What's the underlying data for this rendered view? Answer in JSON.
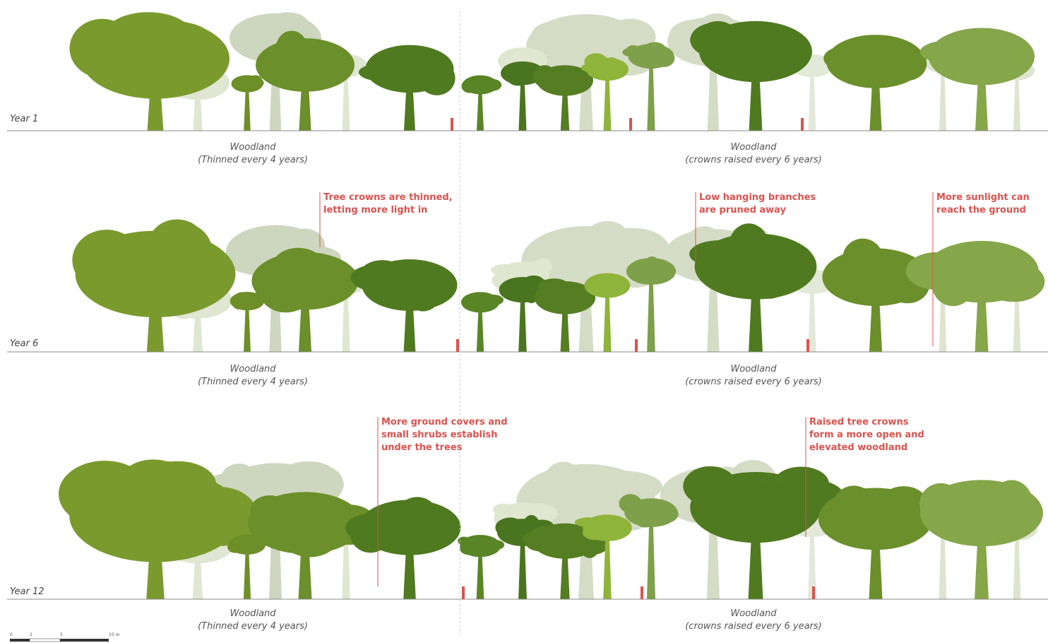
{
  "rows": [
    {
      "year": "Year 1",
      "left_label": {
        "title": "Woodland",
        "subtitle": "(Thinned every 4 years)"
      },
      "right_label": {
        "title": "Woodland",
        "subtitle": "(crowns raised every 6 years)"
      },
      "annotations": []
    },
    {
      "year": "Year 6",
      "left_label": {
        "title": "Woodland",
        "subtitle": "(Thinned every 4 years)"
      },
      "right_label": {
        "title": "Woodland",
        "subtitle": "(crowns raised every 6 years)"
      },
      "annotations": [
        {
          "lines": [
            "Tree crowns are thinned,",
            "letting more light in"
          ]
        },
        {
          "lines": [
            "Low hanging branches",
            "are pruned away"
          ]
        },
        {
          "lines": [
            "More sunlight can",
            "reach the ground"
          ]
        }
      ]
    },
    {
      "year": "Year 12",
      "left_label": {
        "title": "Woodland",
        "subtitle": "(Thinned every 4 years)"
      },
      "right_label": {
        "title": "Woodland",
        "subtitle": "(crowns raised every 6 years)"
      },
      "annotations": [
        {
          "lines": [
            "More ground covers and",
            "small shrubs establish",
            "under the trees"
          ]
        },
        {
          "lines": [
            "Raised tree crowns",
            "form a more open and",
            "elevated woodland"
          ]
        }
      ]
    }
  ],
  "scale_bar": {
    "labels": [
      "0",
      "2",
      "5",
      "10 m"
    ]
  }
}
